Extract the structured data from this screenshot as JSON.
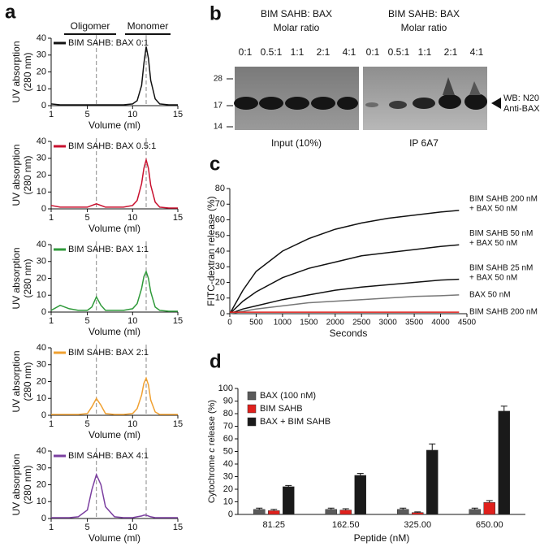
{
  "panel_labels": [
    "a",
    "b",
    "c",
    "d"
  ],
  "blot": {
    "headers": [
      [
        "BIM SAHB: BAX",
        "Molar ratio"
      ],
      [
        "BIM SAHB: BAX",
        "Molar ratio"
      ]
    ],
    "ratios": [
      "0:1",
      "0.5:1",
      "1:1",
      "2:1",
      "4:1"
    ],
    "ratio_colors": [
      "#111111",
      "#c8102e",
      "#2f9a3a",
      "#f0a030",
      "#7b3fa0"
    ],
    "markers": [
      28,
      17,
      14
    ],
    "band_label": [
      "WB: N20",
      "Anti-BAX"
    ],
    "lanes": [
      "Input (10%)",
      "IP 6A7"
    ]
  },
  "chart_data": [
    {
      "type": "line",
      "annotations": [
        "Oligomer",
        "Monomer"
      ],
      "ylabel": [
        "UV absorption",
        "(280 nm)"
      ],
      "xlabel": "Volume (ml)",
      "xlim": [
        1,
        15
      ],
      "xticks": [
        1,
        5,
        10,
        15
      ],
      "ylim": [
        0,
        40
      ],
      "yticks": [
        0,
        10,
        20,
        30,
        40
      ],
      "vlines": [
        6,
        11.5
      ],
      "x": [
        1,
        2,
        3,
        4,
        5,
        5.5,
        6,
        6.5,
        7,
        8,
        9,
        10,
        10.5,
        11,
        11.25,
        11.5,
        11.75,
        12,
        12.5,
        13,
        14,
        15
      ],
      "series": [
        {
          "name": "BIM SAHB: BAX 0:1",
          "color": "#111111",
          "values": [
            1,
            0.5,
            0.5,
            0.5,
            0.5,
            0.5,
            0.5,
            0.5,
            0.5,
            0.5,
            0.5,
            1,
            3,
            12,
            25,
            35,
            28,
            15,
            4,
            1,
            0.5,
            0.5
          ]
        }
      ]
    },
    {
      "type": "line",
      "ylabel": [
        "UV absorption",
        "(280 nm)"
      ],
      "xlabel": "Volume (ml)",
      "xlim": [
        1,
        15
      ],
      "xticks": [
        1,
        5,
        10,
        15
      ],
      "ylim": [
        0,
        40
      ],
      "yticks": [
        0,
        10,
        20,
        30,
        40
      ],
      "vlines": [
        6,
        11.5
      ],
      "x": [
        1,
        2,
        3,
        4,
        5,
        5.5,
        6,
        6.5,
        7,
        8,
        9,
        10,
        10.5,
        11,
        11.25,
        11.5,
        11.75,
        12,
        12.5,
        13,
        14,
        15
      ],
      "series": [
        {
          "name": "BIM SAHB: BAX 0.5:1",
          "color": "#c8102e",
          "values": [
            2,
            1,
            1,
            1,
            1,
            2,
            3,
            2,
            1,
            1,
            1,
            2,
            5,
            15,
            24,
            29,
            24,
            14,
            4,
            1,
            0.5,
            0.5
          ]
        }
      ]
    },
    {
      "type": "line",
      "ylabel": [
        "UV absorption",
        "(280 nm)"
      ],
      "xlabel": "Volume (ml)",
      "xlim": [
        1,
        15
      ],
      "xticks": [
        1,
        5,
        10,
        15
      ],
      "ylim": [
        0,
        40
      ],
      "yticks": [
        0,
        10,
        20,
        30,
        40
      ],
      "vlines": [
        6,
        11.5
      ],
      "x": [
        1,
        2,
        3,
        4,
        5,
        5.5,
        6,
        6.5,
        7,
        8,
        9,
        10,
        10.5,
        11,
        11.25,
        11.5,
        11.75,
        12,
        12.5,
        13,
        14,
        15
      ],
      "series": [
        {
          "name": "BIM SAHB: BAX 1:1",
          "color": "#2f9a3a",
          "values": [
            1,
            4,
            2,
            1,
            1,
            3,
            9,
            4,
            1,
            1,
            1,
            2,
            5,
            14,
            21,
            24,
            20,
            12,
            3,
            1,
            0.5,
            0.5
          ]
        }
      ]
    },
    {
      "type": "line",
      "ylabel": [
        "UV absorption",
        "(280 nm)"
      ],
      "xlabel": "Volume (ml)",
      "xlim": [
        1,
        15
      ],
      "xticks": [
        1,
        5,
        10,
        15
      ],
      "ylim": [
        0,
        40
      ],
      "yticks": [
        0,
        10,
        20,
        30,
        40
      ],
      "vlines": [
        6,
        11.5
      ],
      "x": [
        1,
        2,
        3,
        4,
        5,
        5.5,
        6,
        6.5,
        7,
        8,
        9,
        10,
        10.5,
        11,
        11.25,
        11.5,
        11.75,
        12,
        12.5,
        13,
        14,
        15
      ],
      "series": [
        {
          "name": "BIM SAHB: BAX 2:1",
          "color": "#f0a030",
          "values": [
            0.5,
            0.5,
            0.5,
            0.5,
            1,
            5,
            10,
            6,
            1,
            0.5,
            0.5,
            1,
            4,
            12,
            19,
            22,
            18,
            9,
            2,
            0.5,
            0.5,
            0.5
          ]
        }
      ]
    },
    {
      "type": "line",
      "ylabel": [
        "UV absorption",
        "(280 nm)"
      ],
      "xlabel": "Volume (ml)",
      "xlim": [
        1,
        15
      ],
      "xticks": [
        1,
        5,
        10,
        15
      ],
      "ylim": [
        0,
        40
      ],
      "yticks": [
        0,
        10,
        20,
        30,
        40
      ],
      "vlines": [
        6,
        11.5
      ],
      "x": [
        1,
        2,
        3,
        4,
        5,
        5.5,
        6,
        6.5,
        7,
        8,
        9,
        10,
        10.5,
        11,
        11.25,
        11.5,
        11.75,
        12,
        12.5,
        13,
        14,
        15
      ],
      "series": [
        {
          "name": "BIM SAHB: BAX 4:1",
          "color": "#7b3fa0",
          "values": [
            0.5,
            0.5,
            0.5,
            1,
            5,
            17,
            26,
            20,
            7,
            1,
            0.5,
            0.5,
            1,
            1.5,
            2,
            2,
            1.5,
            1,
            0.5,
            0.5,
            0.5,
            0.5
          ]
        }
      ]
    },
    {
      "type": "line",
      "ylabel": [
        "FITC-dextran release (%)"
      ],
      "xlabel": "Seconds",
      "xlim": [
        0,
        4500
      ],
      "xticks": [
        0,
        500,
        1000,
        1500,
        2000,
        2500,
        3000,
        3500,
        4000,
        4500
      ],
      "ylim": [
        0,
        80
      ],
      "yticks": [
        0,
        10,
        20,
        30,
        40,
        50,
        60,
        70,
        80
      ],
      "x": [
        0,
        250,
        500,
        1000,
        1500,
        2000,
        2500,
        3000,
        3500,
        4000,
        4350
      ],
      "series": [
        {
          "labels": [
            "BIM SAHB  200 nM",
            "+ BAX 50 nM"
          ],
          "color": "#111111",
          "values": [
            0,
            15,
            27,
            40,
            48,
            54,
            58,
            61,
            63,
            65,
            66
          ]
        },
        {
          "labels": [
            "BIM SAHB 50 nM",
            "+ BAX 50 nM"
          ],
          "color": "#111111",
          "values": [
            0,
            8,
            14,
            23,
            29,
            33,
            37,
            39,
            41,
            43,
            44
          ]
        },
        {
          "labels": [
            "BIM SAHB 25 nM",
            "+ BAX 50 nM"
          ],
          "color": "#111111",
          "values": [
            0,
            3,
            5,
            9,
            12,
            15,
            17,
            18.5,
            20,
            21.5,
            22
          ]
        },
        {
          "labels": [
            "BAX 50 nM"
          ],
          "color": "#777777",
          "values": [
            0,
            1.5,
            3,
            5,
            7,
            8,
            9,
            10,
            11,
            11.5,
            12
          ]
        },
        {
          "labels": [
            "BIM SAHB  200 nM"
          ],
          "color": "#e0201c",
          "values": [
            1,
            1,
            1,
            1,
            1,
            1,
            1,
            1,
            1,
            1,
            1
          ]
        }
      ]
    },
    {
      "type": "bar",
      "ylabel": [
        "Cytochrome ",
        "c",
        " release (%)"
      ],
      "xlabel": "Peptide (nM)",
      "categories": [
        "81.25",
        "162.50",
        "325.00",
        "650.00"
      ],
      "ylim": [
        0,
        100
      ],
      "yticks": [
        0,
        10,
        20,
        30,
        40,
        50,
        60,
        70,
        80,
        90,
        100
      ],
      "series": [
        {
          "name": "BAX (100 nM)",
          "color": "#5a5a5a",
          "values": [
            4,
            4,
            4,
            4
          ],
          "errors": [
            1,
            1,
            1,
            1
          ]
        },
        {
          "name": "BIM SAHB",
          "color": "#e0201c",
          "values": [
            3,
            3.5,
            1.5,
            9.5
          ],
          "errors": [
            1,
            1,
            0.5,
            1.5
          ]
        },
        {
          "name": "BAX + BIM SAHB",
          "color": "#1a1a1a",
          "values": [
            22,
            31,
            51,
            82
          ],
          "errors": [
            1,
            1.5,
            5,
            4
          ]
        }
      ]
    }
  ]
}
